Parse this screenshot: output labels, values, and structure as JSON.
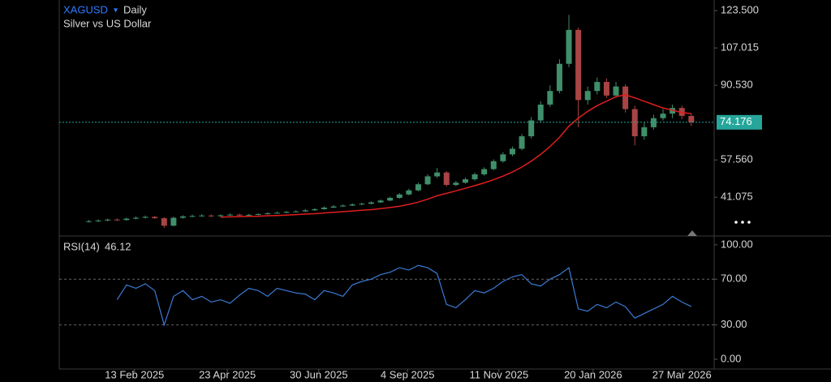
{
  "chart_data": {
    "type": "candlestick",
    "symbol": "XAGUSD",
    "interval": "Daily",
    "title": "Silver vs US Dollar",
    "x": [
      "2025-01-10",
      "2025-01-17",
      "2025-01-24",
      "2025-01-31",
      "2025-02-07",
      "2025-02-14",
      "2025-02-21",
      "2025-02-28",
      "2025-03-07",
      "2025-03-14",
      "2025-03-21",
      "2025-03-28",
      "2025-04-04",
      "2025-04-11",
      "2025-04-18",
      "2025-04-25",
      "2025-05-02",
      "2025-05-09",
      "2025-05-16",
      "2025-05-23",
      "2025-05-30",
      "2025-06-06",
      "2025-06-13",
      "2025-06-20",
      "2025-06-27",
      "2025-07-04",
      "2025-07-11",
      "2025-07-18",
      "2025-07-25",
      "2025-08-01",
      "2025-08-08",
      "2025-08-15",
      "2025-08-22",
      "2025-08-29",
      "2025-09-05",
      "2025-09-12",
      "2025-09-19",
      "2025-09-26",
      "2025-10-03",
      "2025-10-10",
      "2025-10-17",
      "2025-10-24",
      "2025-10-31",
      "2025-11-07",
      "2025-11-14",
      "2025-11-21",
      "2025-11-28",
      "2025-12-05",
      "2025-12-12",
      "2025-12-19",
      "2025-12-26",
      "2026-01-02",
      "2026-01-09",
      "2026-01-16",
      "2026-01-23",
      "2026-01-30",
      "2026-02-06",
      "2026-02-13",
      "2026-02-20",
      "2026-02-27",
      "2026-03-06",
      "2026-03-13",
      "2026-03-20",
      "2026-03-27",
      "2026-04-03"
    ],
    "open": [
      30.2,
      30.5,
      30.8,
      31.2,
      31.0,
      31.6,
      32.0,
      32.4,
      31.8,
      28.5,
      32.0,
      32.6,
      32.8,
      33.0,
      32.7,
      33.1,
      33.4,
      33.0,
      33.3,
      33.6,
      34.0,
      34.2,
      34.6,
      34.8,
      35.3,
      35.8,
      36.5,
      37.0,
      37.4,
      37.9,
      38.2,
      38.8,
      39.6,
      40.8,
      42.3,
      44.1,
      46.8,
      50.3,
      52.0,
      46.5,
      47.5,
      49.0,
      51.2,
      53.5,
      57,
      60,
      62.5,
      68,
      75,
      82,
      88,
      100,
      115,
      84,
      88,
      92,
      86,
      90,
      80,
      68,
      72,
      76,
      78,
      80.5,
      77
    ],
    "high": [
      31.0,
      31.3,
      31.6,
      31.8,
      32.1,
      32.6,
      33.0,
      32.8,
      32.2,
      32.5,
      33.1,
      33.4,
      33.6,
      33.5,
      33.5,
      33.9,
      33.8,
      33.7,
      34.0,
      34.4,
      34.7,
      35.0,
      35.3,
      35.8,
      36.3,
      37.0,
      37.6,
      37.9,
      38.4,
      38.7,
      39.3,
      40.1,
      41.3,
      42.9,
      44.8,
      47.5,
      51.2,
      54.0,
      52.6,
      48.3,
      49.8,
      52.0,
      54.3,
      57.8,
      61.0,
      63.5,
      69.0,
      76.5,
      83.5,
      90.5,
      102.0,
      121.6,
      116.0,
      90.0,
      94.0,
      93.5,
      92.0,
      91.0,
      81.5,
      74.0,
      77.5,
      80.0,
      82.0,
      81.5,
      78.0
    ],
    "low": [
      29.9,
      30.1,
      30.4,
      30.6,
      30.7,
      31.3,
      31.7,
      31.5,
      27.5,
      28.2,
      31.6,
      32.2,
      32.4,
      32.3,
      32.4,
      32.8,
      32.7,
      32.8,
      33.1,
      33.4,
      33.8,
      34.0,
      34.4,
      34.6,
      35.1,
      35.6,
      36.3,
      36.8,
      37.2,
      37.6,
      37.9,
      38.6,
      39.3,
      40.4,
      41.9,
      43.7,
      46.4,
      49.6,
      45.8,
      45.9,
      47.0,
      48.4,
      50.6,
      53.0,
      56.3,
      59.2,
      61.8,
      67.0,
      74.0,
      81.0,
      87.0,
      98.5,
      72.0,
      82.0,
      86.5,
      85.0,
      85.0,
      78.5,
      64.0,
      66.5,
      71.0,
      75.0,
      76.0,
      75.5,
      72.5
    ],
    "close": [
      30.5,
      30.8,
      31.2,
      31.0,
      31.6,
      32.0,
      32.4,
      31.8,
      28.5,
      32.0,
      32.6,
      32.8,
      33.0,
      32.7,
      33.1,
      33.4,
      33.0,
      33.3,
      33.6,
      34.0,
      34.2,
      34.6,
      34.8,
      35.3,
      35.8,
      36.5,
      37.0,
      37.4,
      37.9,
      38.2,
      38.8,
      39.6,
      40.8,
      42.3,
      44.1,
      46.8,
      50.3,
      52.0,
      46.5,
      47.5,
      49.0,
      51.2,
      53.5,
      57,
      60,
      62.5,
      68,
      75,
      82,
      88,
      100,
      115,
      84,
      88,
      92,
      86,
      90,
      80,
      68,
      72,
      76,
      78,
      80.5,
      77,
      74.176
    ],
    "up_color": "#3f8f6a",
    "down_color": "#a94444",
    "last_price_color": "#26a69a",
    "ma": {
      "color": "#e01e1e",
      "values": [
        null,
        null,
        null,
        null,
        null,
        null,
        null,
        null,
        null,
        null,
        null,
        null,
        null,
        null,
        32.3,
        32.4,
        32.5,
        32.6,
        32.7,
        32.9,
        33.0,
        33.2,
        33.4,
        33.6,
        33.8,
        34.1,
        34.4,
        34.7,
        35.0,
        35.3,
        35.6,
        36.0,
        36.5,
        37.1,
        37.9,
        38.9,
        40.2,
        41.7,
        42.8,
        43.9,
        45.0,
        46.2,
        47.4,
        48.8,
        50.4,
        52.2,
        54.4,
        57.0,
        60.0,
        63.5,
        67.5,
        72.5,
        76.0,
        79.0,
        81.5,
        83.5,
        85.5,
        86.3,
        85.0,
        83.5,
        82.0,
        80.5,
        79.5,
        78.5,
        78.0
      ]
    },
    "xlim": [
      "2024-12-19",
      "2026-04-20"
    ],
    "xticks": [
      {
        "value": "2025-02-13",
        "label": "13 Feb 2025"
      },
      {
        "value": "2025-04-23",
        "label": "23 Apr 2025"
      },
      {
        "value": "2025-06-30",
        "label": "30 Jun 2025"
      },
      {
        "value": "2025-09-04",
        "label": "4 Sep 2025"
      },
      {
        "value": "2025-11-11",
        "label": "11 Nov 2025"
      },
      {
        "value": "2026-01-20",
        "label": "20 Jan 2026"
      },
      {
        "value": "2026-03-27",
        "label": "27 Mar 2026"
      }
    ],
    "ylim": [
      24.3,
      128.2
    ],
    "yticks": [
      {
        "value": 123.5,
        "label": "123.500"
      },
      107.015,
      {
        "value": 90.53,
        "label": "90.530"
      },
      {
        "value": 57.56,
        "label": "57.560"
      },
      41.075
    ],
    "rsi": {
      "label": "RSI(14)",
      "color": "#3a7bd5",
      "values": [
        null,
        null,
        null,
        52,
        65,
        62,
        66,
        60,
        30,
        55,
        60,
        52,
        55,
        50,
        52,
        49,
        56,
        62,
        60,
        55,
        62,
        60,
        58,
        57,
        52,
        60,
        58,
        55,
        65,
        68,
        70,
        74,
        76,
        80,
        78,
        82,
        80,
        75,
        48,
        45,
        52,
        60,
        58,
        62,
        68,
        72,
        74,
        66,
        64,
        70,
        74,
        80,
        44,
        42,
        48,
        45,
        50,
        46,
        36,
        40,
        44,
        48,
        55,
        50,
        46.12
      ],
      "ylim": [
        -8.5,
        107
      ],
      "yticks": [
        {
          "value": 100,
          "label": "100.00"
        },
        {
          "value": 70,
          "label": "70.00"
        },
        {
          "value": 30,
          "label": "30.00"
        },
        {
          "value": 0,
          "label": "0.00"
        }
      ],
      "levels": [
        70,
        30
      ]
    }
  }
}
